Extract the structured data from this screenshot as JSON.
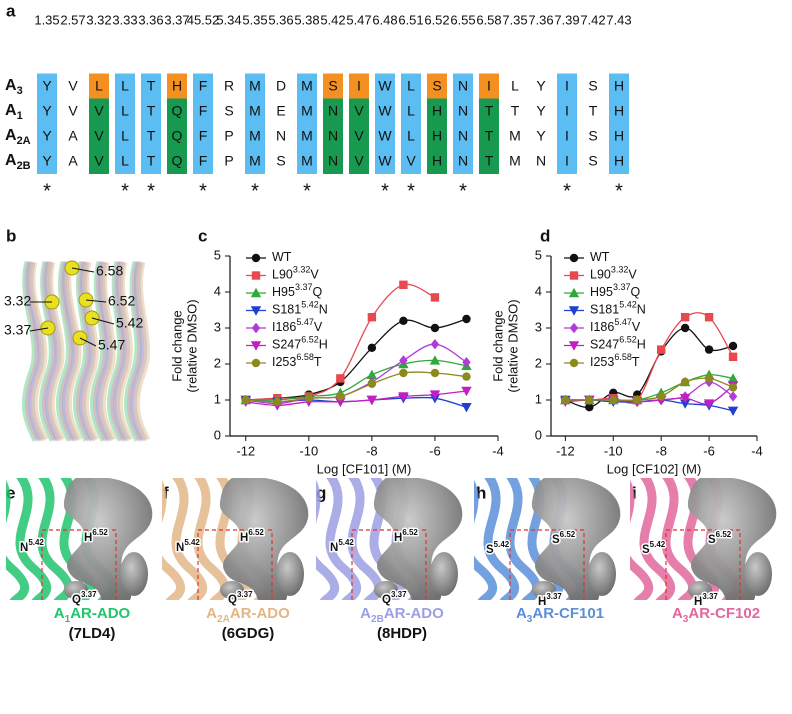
{
  "panel_labels": [
    "a",
    "b",
    "c",
    "d",
    "e",
    "f",
    "g",
    "h",
    "i"
  ],
  "alignment": {
    "positions": [
      "1.35",
      "2.57",
      "3.32",
      "3.33",
      "3.36",
      "3.37",
      "45.52",
      "5.34",
      "5.35",
      "5.36",
      "5.38",
      "5.42",
      "5.47",
      "6.48",
      "6.51",
      "6.52",
      "6.55",
      "6.58",
      "7.35",
      "7.36",
      "7.39",
      "7.42",
      "7.43"
    ],
    "rows": [
      {
        "name": "A",
        "subscript": "3",
        "residues": [
          "Y",
          "V",
          "L",
          "L",
          "T",
          "H",
          "F",
          "R",
          "M",
          "D",
          "M",
          "S",
          "I",
          "W",
          "L",
          "S",
          "N",
          "I",
          "L",
          "Y",
          "I",
          "S",
          "H"
        ],
        "colors": [
          "#5bbdf2",
          null,
          "#f39021",
          "#5bbdf2",
          "#5bbdf2",
          "#f39021",
          "#5bbdf2",
          null,
          "#5bbdf2",
          null,
          "#5bbdf2",
          "#f39021",
          "#f39021",
          "#5bbdf2",
          "#5bbdf2",
          "#f39021",
          "#5bbdf2",
          "#f39021",
          null,
          null,
          "#5bbdf2",
          null,
          "#5bbdf2"
        ]
      },
      {
        "name": "A",
        "subscript": "1",
        "residues": [
          "Y",
          "V",
          "V",
          "L",
          "T",
          "Q",
          "F",
          "S",
          "M",
          "E",
          "M",
          "N",
          "V",
          "W",
          "L",
          "H",
          "N",
          "T",
          "T",
          "Y",
          "I",
          "T",
          "H"
        ],
        "colors": [
          "#5bbdf2",
          null,
          "#179a4f",
          "#5bbdf2",
          "#5bbdf2",
          "#179a4f",
          "#5bbdf2",
          null,
          "#5bbdf2",
          null,
          "#5bbdf2",
          "#179a4f",
          "#179a4f",
          "#5bbdf2",
          "#5bbdf2",
          "#179a4f",
          "#5bbdf2",
          "#179a4f",
          null,
          null,
          "#5bbdf2",
          null,
          "#5bbdf2"
        ]
      },
      {
        "name": "A",
        "subscript": "2A",
        "residues": [
          "Y",
          "A",
          "V",
          "L",
          "T",
          "Q",
          "F",
          "P",
          "M",
          "N",
          "M",
          "N",
          "V",
          "W",
          "L",
          "H",
          "N",
          "T",
          "M",
          "Y",
          "I",
          "S",
          "H"
        ],
        "colors": [
          "#5bbdf2",
          null,
          "#179a4f",
          "#5bbdf2",
          "#5bbdf2",
          "#179a4f",
          "#5bbdf2",
          null,
          "#5bbdf2",
          null,
          "#5bbdf2",
          "#179a4f",
          "#179a4f",
          "#5bbdf2",
          "#5bbdf2",
          "#179a4f",
          "#5bbdf2",
          "#179a4f",
          null,
          null,
          "#5bbdf2",
          null,
          "#5bbdf2"
        ]
      },
      {
        "name": "A",
        "subscript": "2B",
        "residues": [
          "Y",
          "A",
          "V",
          "L",
          "T",
          "Q",
          "F",
          "P",
          "M",
          "S",
          "M",
          "N",
          "V",
          "W",
          "V",
          "H",
          "N",
          "T",
          "M",
          "N",
          "I",
          "S",
          "H"
        ],
        "colors": [
          "#5bbdf2",
          null,
          "#179a4f",
          "#5bbdf2",
          "#5bbdf2",
          "#179a4f",
          "#5bbdf2",
          null,
          "#5bbdf2",
          null,
          "#5bbdf2",
          "#179a4f",
          "#179a4f",
          "#5bbdf2",
          "#5bbdf2",
          "#179a4f",
          "#5bbdf2",
          "#179a4f",
          null,
          null,
          "#5bbdf2",
          null,
          "#5bbdf2"
        ]
      }
    ],
    "conserved": [
      "*",
      null,
      null,
      "*",
      "*",
      null,
      "*",
      null,
      "*",
      null,
      "*",
      null,
      null,
      "*",
      "*",
      null,
      "*",
      null,
      null,
      null,
      "*",
      null,
      "*"
    ]
  },
  "structure_labels": [
    "6.58",
    "3.32",
    "6.52",
    "5.42",
    "3.37",
    "5.47"
  ],
  "chart_data": [
    {
      "type": "scatter",
      "xlabel": "Log [CF101] (M)",
      "ylabel": [
        "Fold change",
        "(relative DMSO)"
      ],
      "x": [
        -12,
        -11,
        -10,
        -9,
        -8,
        -7,
        -6,
        -5
      ],
      "xlim": [
        -12.5,
        -4
      ],
      "xticks": [
        -12,
        -10,
        -8,
        -6,
        -4
      ],
      "ylim": [
        0,
        5
      ],
      "yticks": [
        0,
        1,
        2,
        3,
        4,
        5
      ],
      "series": [
        {
          "name": "WT",
          "color": "#111111",
          "marker": "circle",
          "values": [
            1.0,
            1.05,
            1.15,
            1.5,
            2.45,
            3.2,
            3.0,
            3.25
          ]
        },
        {
          "name": "L90",
          "superscript": "3.32",
          "suffix": "V",
          "color": "#e8494f",
          "marker": "square",
          "values": [
            1.0,
            1.05,
            1.1,
            1.6,
            3.3,
            4.2,
            3.85,
            null
          ]
        },
        {
          "name": "H95",
          "superscript": "3.37",
          "suffix": "Q",
          "color": "#2faa3a",
          "marker": "triangle",
          "values": [
            1.0,
            1.0,
            1.1,
            1.2,
            1.7,
            2.0,
            2.1,
            1.95
          ]
        },
        {
          "name": "S181",
          "superscript": "5.42",
          "suffix": "N",
          "color": "#1f3fd0",
          "marker": "triangle-down",
          "values": [
            1.0,
            0.95,
            1.0,
            0.95,
            1.0,
            1.05,
            1.05,
            0.8
          ]
        },
        {
          "name": "I186",
          "superscript": "5.47",
          "suffix": "V",
          "color": "#b03cd8",
          "marker": "diamond",
          "values": [
            1.0,
            0.9,
            1.05,
            1.1,
            1.5,
            2.1,
            2.55,
            2.05
          ]
        },
        {
          "name": "S247",
          "superscript": "6.52",
          "suffix": "H",
          "color": "#c21fc2",
          "marker": "triangle-down",
          "values": [
            0.95,
            0.85,
            0.95,
            0.95,
            1.0,
            1.1,
            1.15,
            1.25
          ]
        },
        {
          "name": "I253",
          "superscript": "6.58",
          "suffix": "T",
          "color": "#8c8a1c",
          "marker": "circle",
          "values": [
            1.0,
            0.95,
            1.05,
            1.1,
            1.45,
            1.75,
            1.75,
            1.65
          ]
        }
      ]
    },
    {
      "type": "scatter",
      "xlabel": "Log [CF102] (M)",
      "ylabel": [
        "Fold change",
        "(relative DMSO)"
      ],
      "x": [
        -12,
        -11,
        -10,
        -9,
        -8,
        -7,
        -6,
        -5
      ],
      "xlim": [
        -12.6,
        -4
      ],
      "xticks": [
        -12,
        -10,
        -8,
        -6,
        -4
      ],
      "ylim": [
        0,
        5
      ],
      "yticks": [
        0,
        1,
        2,
        3,
        4,
        5
      ],
      "series": [
        {
          "name": "WT",
          "color": "#111111",
          "marker": "circle",
          "values": [
            1.0,
            0.8,
            1.2,
            1.15,
            2.35,
            3.0,
            2.4,
            2.5
          ]
        },
        {
          "name": "L90",
          "superscript": "3.32",
          "suffix": "V",
          "color": "#e8494f",
          "marker": "square",
          "values": [
            1.0,
            1.0,
            1.05,
            1.0,
            2.4,
            3.3,
            3.3,
            2.2
          ]
        },
        {
          "name": "H95",
          "superscript": "3.37",
          "suffix": "Q",
          "color": "#2faa3a",
          "marker": "triangle",
          "values": [
            1.0,
            1.0,
            1.0,
            1.0,
            1.2,
            1.5,
            1.7,
            1.6
          ]
        },
        {
          "name": "S181",
          "superscript": "5.42",
          "suffix": "N",
          "color": "#1f3fd0",
          "marker": "triangle-down",
          "values": [
            1.0,
            1.0,
            0.95,
            0.95,
            1.0,
            0.9,
            0.85,
            0.7
          ]
        },
        {
          "name": "I186",
          "superscript": "5.47",
          "suffix": "V",
          "color": "#b03cd8",
          "marker": "diamond",
          "values": [
            1.0,
            1.0,
            1.0,
            0.95,
            1.0,
            1.1,
            1.5,
            1.1
          ]
        },
        {
          "name": "S247",
          "superscript": "6.52",
          "suffix": "H",
          "color": "#c21fc2",
          "marker": "triangle-down",
          "values": [
            0.95,
            1.0,
            1.0,
            0.95,
            1.0,
            1.05,
            0.9,
            1.4
          ]
        },
        {
          "name": "I253",
          "superscript": "6.58",
          "suffix": "T",
          "color": "#8c8a1c",
          "marker": "circle",
          "values": [
            1.0,
            1.0,
            1.0,
            1.0,
            1.1,
            1.5,
            1.6,
            1.35
          ]
        }
      ]
    }
  ],
  "structures": [
    {
      "labels": [
        {
          "residue": "N",
          "superscript": "5.42"
        },
        {
          "residue": "H",
          "superscript": "6.52"
        },
        {
          "residue": "Q",
          "superscript": "3.37"
        }
      ],
      "receptor": "A",
      "subscript": "1",
      "suffix": "AR-ADO",
      "pdb": "(7LD4)",
      "color": "#22c46f"
    },
    {
      "labels": [
        {
          "residue": "N",
          "superscript": "5.42"
        },
        {
          "residue": "H",
          "superscript": "6.52"
        },
        {
          "residue": "Q",
          "superscript": "3.37"
        }
      ],
      "receptor": "A",
      "subscript": "2A",
      "suffix": "AR-ADO",
      "pdb": "(6GDG)",
      "color": "#e3b688"
    },
    {
      "labels": [
        {
          "residue": "N",
          "superscript": "5.42"
        },
        {
          "residue": "H",
          "superscript": "6.52"
        },
        {
          "residue": "Q",
          "superscript": "3.37"
        }
      ],
      "receptor": "A",
      "subscript": "2B",
      "suffix": "AR-ADO",
      "pdb": "(8HDP)",
      "color": "#9c9fe3"
    },
    {
      "labels": [
        {
          "residue": "S",
          "superscript": "5.42"
        },
        {
          "residue": "S",
          "superscript": "6.52"
        },
        {
          "residue": "H",
          "superscript": "3.37"
        }
      ],
      "receptor": "A",
      "subscript": "3",
      "suffix": "AR-CF101",
      "color": "#5b8fd8"
    },
    {
      "labels": [
        {
          "residue": "S",
          "superscript": "5.42"
        },
        {
          "residue": "S",
          "superscript": "6.52"
        },
        {
          "residue": "H",
          "superscript": "3.37"
        }
      ],
      "receptor": "A",
      "subscript": "3",
      "suffix": "AR-CF102",
      "color": "#e2679d"
    }
  ]
}
